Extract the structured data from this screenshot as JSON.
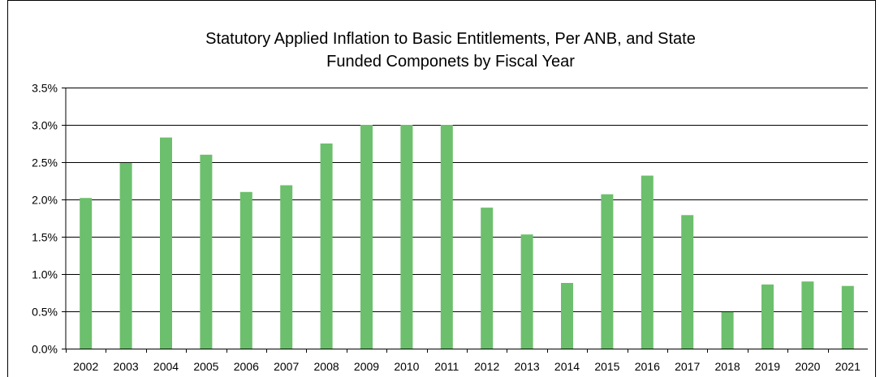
{
  "chart_data": {
    "type": "bar",
    "title_lines": [
      "Statutory Applied Inflation to Basic Entitlements, Per ANB, and State",
      "Funded Componets by Fiscal Year"
    ],
    "xlabel": "",
    "ylabel": "",
    "categories": [
      "2002",
      "2003",
      "2004",
      "2005",
      "2006",
      "2007",
      "2008",
      "2009",
      "2010",
      "2011",
      "2012",
      "2013",
      "2014",
      "2015",
      "2016",
      "2017",
      "2018",
      "2019",
      "2020",
      "2021"
    ],
    "series": [
      {
        "values": [
          2.02,
          2.49,
          2.83,
          2.6,
          2.1,
          2.19,
          2.75,
          3.0,
          3.0,
          3.0,
          1.89,
          1.53,
          0.88,
          2.07,
          2.32,
          1.79,
          0.49,
          0.86,
          0.9,
          0.84
        ],
        "color": "#6cbf6c"
      }
    ],
    "ylim": [
      0,
      3.5
    ],
    "yticks": [
      0,
      0.5,
      1.0,
      1.5,
      2.0,
      2.5,
      3.0,
      3.5
    ],
    "ytick_labels": [
      "0.0%",
      "0.5%",
      "1.0%",
      "1.5%",
      "2.0%",
      "2.5%",
      "3.0%",
      "3.5%"
    ],
    "grid": true,
    "legend": "none"
  }
}
